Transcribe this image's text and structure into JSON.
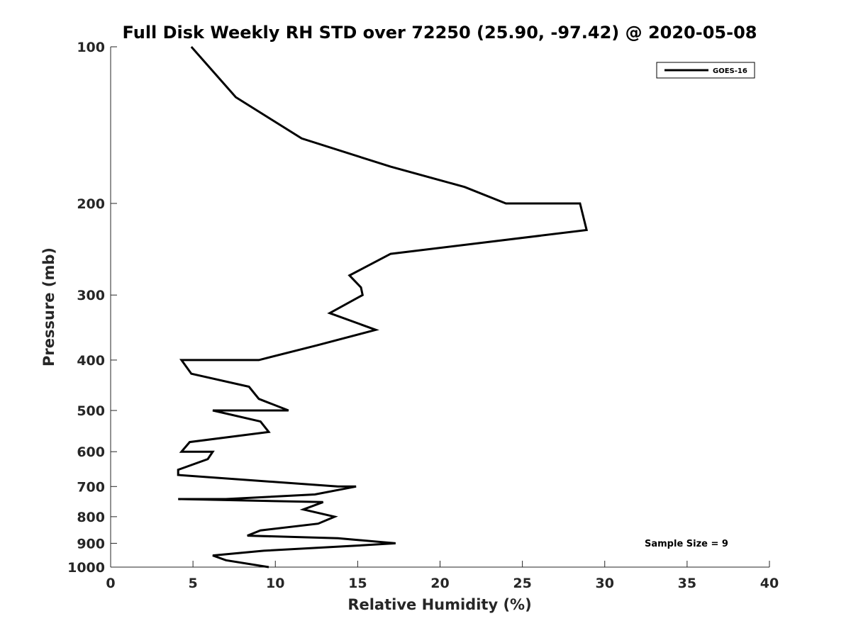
{
  "chart_data": {
    "type": "line",
    "title": "Full Disk Weekly RH STD over 72250 (25.90, -97.42) @ 2020-05-08",
    "xlabel": "Relative Humidity (%)",
    "ylabel": "Pressure (mb)",
    "xlim": [
      0,
      40
    ],
    "ylim": [
      100,
      1000
    ],
    "yscale": "log",
    "y_reversed": true,
    "x_ticks": [
      0,
      5,
      10,
      15,
      20,
      25,
      30,
      35,
      40
    ],
    "x_tick_labels": [
      "0",
      "5",
      "10",
      "15",
      "20",
      "25",
      "30",
      "35",
      "40"
    ],
    "y_ticks": [
      100,
      200,
      300,
      400,
      500,
      600,
      700,
      800,
      900,
      1000
    ],
    "y_tick_labels": [
      "100",
      "200",
      "300",
      "400",
      "500",
      "600",
      "700",
      "800",
      "900",
      "1000"
    ],
    "grid": false,
    "legend": {
      "placement": "top-right",
      "entries": [
        "GOES-16"
      ]
    },
    "annotation": "Sample Size = 9",
    "series": [
      {
        "name": "GOES-16",
        "color": "#000000",
        "points": [
          [
            4.9,
            100
          ],
          [
            7.6,
            125
          ],
          [
            11.6,
            150
          ],
          [
            17.0,
            170
          ],
          [
            21.5,
            186
          ],
          [
            24.0,
            200
          ],
          [
            28.5,
            200
          ],
          [
            28.9,
            225
          ],
          [
            17.0,
            250
          ],
          [
            14.5,
            275
          ],
          [
            15.2,
            290
          ],
          [
            15.3,
            300
          ],
          [
            13.3,
            325
          ],
          [
            16.1,
            350
          ],
          [
            12.5,
            375
          ],
          [
            9.0,
            400
          ],
          [
            4.3,
            400
          ],
          [
            4.9,
            425
          ],
          [
            8.4,
            450
          ],
          [
            9.0,
            475
          ],
          [
            10.8,
            500
          ],
          [
            6.2,
            500
          ],
          [
            9.1,
            525
          ],
          [
            9.6,
            550
          ],
          [
            4.8,
            575
          ],
          [
            4.3,
            600
          ],
          [
            6.2,
            600
          ],
          [
            5.9,
            620
          ],
          [
            4.1,
            650
          ],
          [
            4.1,
            665
          ],
          [
            13.8,
            700
          ],
          [
            14.9,
            700
          ],
          [
            12.4,
            725
          ],
          [
            7.0,
            740
          ],
          [
            4.1,
            740
          ],
          [
            12.9,
            750
          ],
          [
            11.7,
            775
          ],
          [
            13.6,
            800
          ],
          [
            12.6,
            825
          ],
          [
            9.1,
            850
          ],
          [
            8.3,
            870
          ],
          [
            13.8,
            880
          ],
          [
            17.3,
            900
          ],
          [
            14.8,
            910
          ],
          [
            9.3,
            930
          ],
          [
            6.2,
            950
          ],
          [
            7.0,
            970
          ],
          [
            9.6,
            1000
          ]
        ]
      }
    ]
  }
}
